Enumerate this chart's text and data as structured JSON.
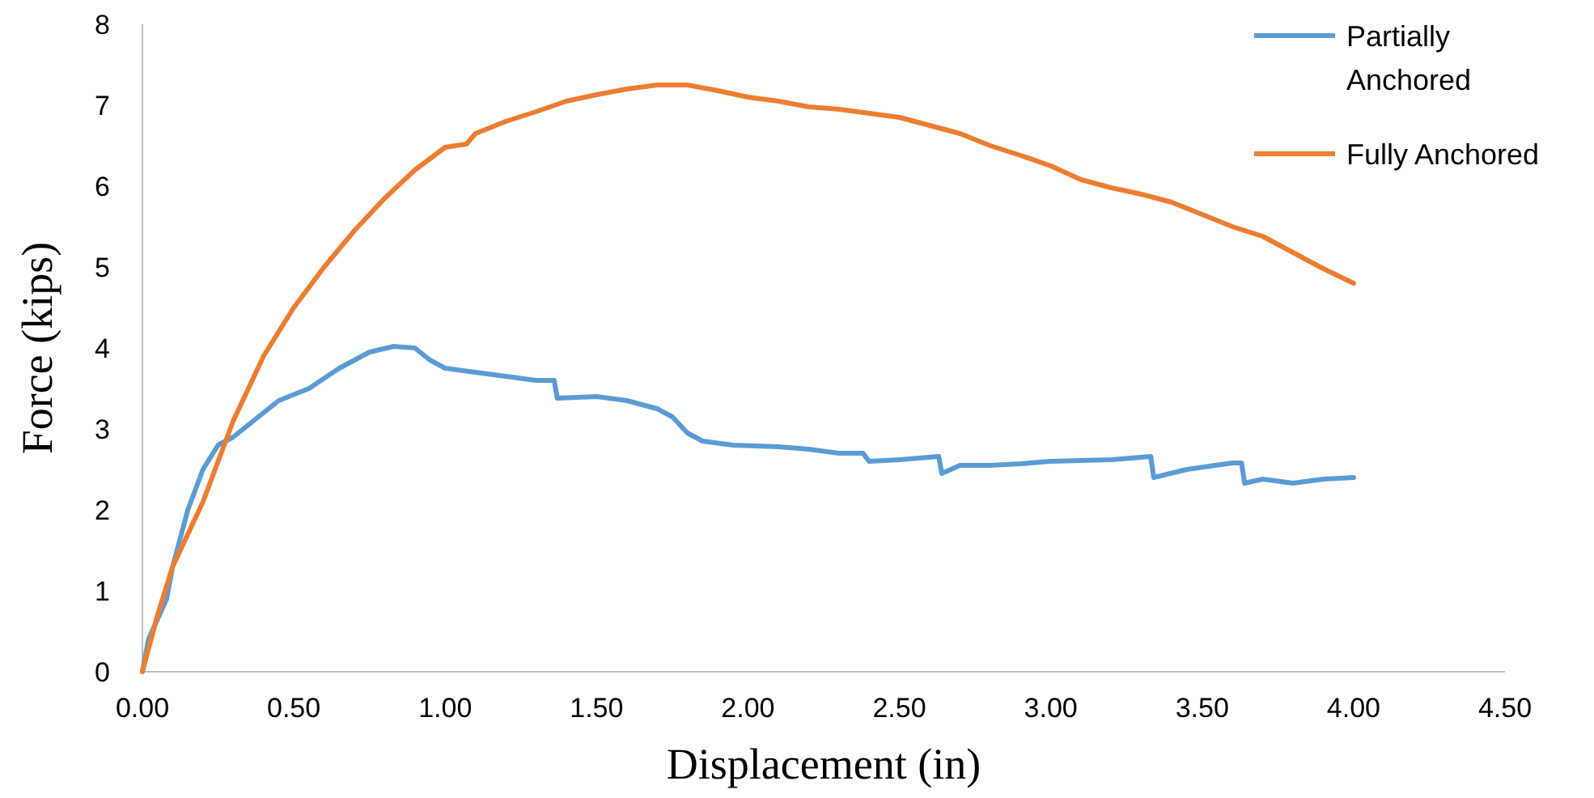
{
  "chart_data": {
    "type": "line",
    "xlabel": "Displacement (in)",
    "ylabel": "Force (kips)",
    "xlim": [
      0,
      4.5
    ],
    "xticks": [
      {
        "value": 0,
        "label": "0.00"
      },
      {
        "value": 0.5,
        "label": "0.50"
      },
      {
        "value": 1,
        "label": "1.00"
      },
      {
        "value": 1.5,
        "label": "1.50"
      },
      {
        "value": 2,
        "label": "2.00"
      },
      {
        "value": 2.5,
        "label": "2.50"
      },
      {
        "value": 3,
        "label": "3.00"
      },
      {
        "value": 3.5,
        "label": "3.50"
      },
      {
        "value": 4,
        "label": "4.00"
      },
      {
        "value": 4.5,
        "label": "4.50"
      }
    ],
    "ylim": [
      0,
      8
    ],
    "yticks": [
      0,
      1,
      2,
      3,
      4,
      5,
      6,
      7,
      8
    ],
    "grid": false,
    "legend": "top right",
    "marker": "none",
    "line_style": "solid",
    "series": [
      {
        "name": "Partially Anchored",
        "color": "#5b9bd5",
        "x": [
          0,
          0.02,
          0.08,
          0.1,
          0.15,
          0.2,
          0.25,
          0.3,
          0.4,
          0.45,
          0.55,
          0.65,
          0.75,
          0.83,
          0.9,
          0.95,
          1.0,
          1.1,
          1.2,
          1.3,
          1.36,
          1.37,
          1.5,
          1.6,
          1.7,
          1.75,
          1.8,
          1.85,
          1.95,
          2.1,
          2.2,
          2.3,
          2.38,
          2.4,
          2.5,
          2.63,
          2.64,
          2.7,
          2.8,
          2.9,
          3.0,
          3.2,
          3.33,
          3.34,
          3.45,
          3.6,
          3.63,
          3.64,
          3.7,
          3.8,
          3.9,
          4.0
        ],
        "values": [
          0,
          0.4,
          0.9,
          1.3,
          2.0,
          2.5,
          2.8,
          2.9,
          3.2,
          3.35,
          3.5,
          3.75,
          3.95,
          4.02,
          4.0,
          3.85,
          3.75,
          3.7,
          3.65,
          3.6,
          3.6,
          3.38,
          3.4,
          3.35,
          3.25,
          3.15,
          2.95,
          2.85,
          2.8,
          2.78,
          2.75,
          2.7,
          2.7,
          2.6,
          2.62,
          2.66,
          2.45,
          2.55,
          2.55,
          2.57,
          2.6,
          2.62,
          2.66,
          2.4,
          2.5,
          2.58,
          2.58,
          2.33,
          2.38,
          2.33,
          2.38,
          2.4
        ]
      },
      {
        "name": "Fully Anchored",
        "color": "#ed7d31",
        "x": [
          0,
          0.05,
          0.1,
          0.2,
          0.3,
          0.4,
          0.5,
          0.6,
          0.7,
          0.8,
          0.9,
          1.0,
          1.07,
          1.1,
          1.2,
          1.3,
          1.4,
          1.5,
          1.6,
          1.7,
          1.8,
          1.9,
          2.0,
          2.1,
          2.2,
          2.3,
          2.4,
          2.5,
          2.6,
          2.7,
          2.8,
          2.9,
          3.0,
          3.1,
          3.2,
          3.3,
          3.4,
          3.5,
          3.6,
          3.7,
          3.8,
          3.9,
          4.0
        ],
        "values": [
          0,
          0.7,
          1.3,
          2.1,
          3.1,
          3.9,
          4.5,
          5.0,
          5.45,
          5.85,
          6.2,
          6.48,
          6.52,
          6.65,
          6.8,
          6.92,
          7.05,
          7.13,
          7.2,
          7.25,
          7.25,
          7.18,
          7.1,
          7.05,
          6.98,
          6.95,
          6.9,
          6.85,
          6.75,
          6.65,
          6.5,
          6.38,
          6.25,
          6.08,
          5.98,
          5.9,
          5.8,
          5.65,
          5.5,
          5.38,
          5.18,
          4.98,
          4.8
        ]
      }
    ]
  }
}
